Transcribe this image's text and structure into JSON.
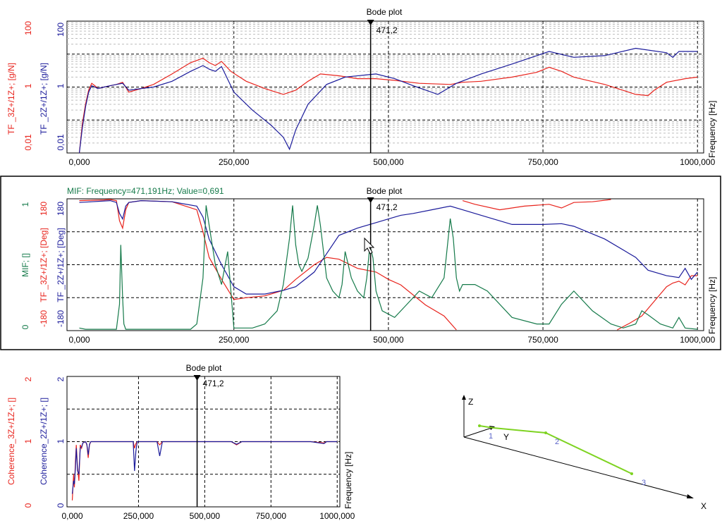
{
  "colors": {
    "red": "#e8231c",
    "blue": "#1a1a9a",
    "green": "#157a4a",
    "black": "#000000",
    "grid": "#bdbdbd",
    "mode": "#7ed321"
  },
  "cursor_value": "471,2",
  "chart_data": [
    {
      "id": "top",
      "type": "line",
      "title": "Bode plot",
      "x_unit_label": "Frequency [Hz]",
      "xlim": [
        -20,
        1010
      ],
      "xticks": [
        "0,000",
        "250,000",
        "500,000",
        "750,000",
        "1000,000"
      ],
      "xtick_values": [
        0,
        250,
        500,
        750,
        1000
      ],
      "yscale": "log",
      "ylim": [
        0.01,
        100
      ],
      "ylabel_red": "TF _3Z+/1Z+; [g/N]",
      "ylabel_blue": "TF _2Z+/1Z+; [g/N]",
      "yticks_red": [
        "100",
        "1",
        "0,01"
      ],
      "yticks_blue": [
        "100",
        "1",
        "0,01"
      ],
      "cursor_x": 471.2,
      "series": [
        {
          "name": "TF _3Z+/1Z+",
          "color": "red",
          "x": [
            0,
            5,
            10,
            15,
            20,
            25,
            30,
            40,
            50,
            60,
            70,
            80,
            100,
            120,
            150,
            180,
            200,
            210,
            220,
            230,
            245,
            270,
            300,
            330,
            350,
            370,
            390,
            420,
            450,
            480,
            510,
            550,
            600,
            620,
            650,
            700,
            740,
            760,
            780,
            800,
            850,
            900,
            920,
            930,
            950,
            980,
            1000
          ],
          "y": [
            0.01,
            0.08,
            0.3,
            0.8,
            1.3,
            1.1,
            0.9,
            1.0,
            1.1,
            1.2,
            1.4,
            0.7,
            0.9,
            1.2,
            2.5,
            5.5,
            7.5,
            5.5,
            4.5,
            6.0,
            3.0,
            1.5,
            0.9,
            0.6,
            0.8,
            1.5,
            2.5,
            2.2,
            1.8,
            1.8,
            1.6,
            1.3,
            1.2,
            1.4,
            1.5,
            2.0,
            2.8,
            4.0,
            3.0,
            2.0,
            1.2,
            0.6,
            0.55,
            0.8,
            1.4,
            1.8,
            2.0
          ]
        },
        {
          "name": "TF _2Z+/1Z+",
          "color": "blue",
          "x": [
            0,
            5,
            10,
            15,
            20,
            25,
            30,
            40,
            50,
            60,
            70,
            80,
            100,
            120,
            150,
            180,
            200,
            210,
            220,
            230,
            250,
            280,
            310,
            330,
            340,
            350,
            370,
            400,
            430,
            460,
            480,
            510,
            540,
            580,
            610,
            650,
            700,
            760,
            800,
            850,
            900,
            950,
            960,
            970,
            1000
          ],
          "y": [
            0.01,
            0.06,
            0.25,
            0.7,
            1.1,
            1.0,
            0.9,
            1.0,
            1.1,
            1.2,
            1.3,
            0.8,
            0.9,
            1.0,
            1.5,
            3.0,
            4.5,
            3.5,
            3.0,
            4.2,
            0.7,
            0.2,
            0.07,
            0.03,
            0.013,
            0.05,
            0.3,
            1.2,
            2.0,
            2.3,
            2.5,
            1.8,
            1.1,
            0.6,
            1.3,
            2.5,
            5.0,
            12.0,
            8.0,
            9.0,
            15.0,
            11.0,
            8.0,
            12.0,
            12.0
          ]
        }
      ]
    },
    {
      "id": "middle",
      "type": "line",
      "title": "Bode plot",
      "info_text": "MIF: Frequency=471,191Hz; Value=0,691",
      "x_unit_label": "Frequency [Hz]",
      "xlim": [
        -20,
        1010
      ],
      "xticks": [
        "0,000",
        "250,000",
        "500,000",
        "750,000",
        "1000,000"
      ],
      "xtick_values": [
        0,
        250,
        500,
        750,
        1000
      ],
      "ylabel_green": "MIF; []",
      "ylabel_red": "TF _3Z+/1Z+; [Deg]",
      "ylabel_blue": "TF _2Z+/1Z+; [Deg]",
      "yticks_green": [
        "1",
        "0"
      ],
      "yticks_red": [
        "180",
        "-180"
      ],
      "yticks_blue": [
        "180",
        "-180"
      ],
      "ylim_phase": [
        -180,
        180
      ],
      "ylim_mif": [
        0,
        1
      ],
      "cursor_x": 471.2,
      "series": [
        {
          "name": "TF _3Z+/1Z+ phase",
          "color": "red",
          "axis": "phase",
          "segments": [
            {
              "x": [
                0,
                20,
                40,
                50,
                60,
                65,
                70,
                75,
                80,
                100,
                150,
                190,
                200,
                210,
                230,
                250,
                270,
                300,
                330,
                350,
                380,
                400,
                420,
                450,
                480,
                500,
                520,
                560,
                590,
                610
              ],
              "y": [
                175,
                176,
                177,
                178,
                175,
                120,
                100,
                150,
                170,
                175,
                172,
                150,
                90,
                20,
                -40,
                -95,
                -90,
                -85,
                -70,
                -40,
                0,
                20,
                15,
                -10,
                -20,
                -40,
                -55,
                -110,
                -140,
                -178
              ]
            },
            {
              "x": [
                620,
                640,
                680,
                720,
                760,
                780,
                800,
                830,
                860
              ],
              "y": [
                175,
                165,
                150,
                160,
                165,
                155,
                170,
                172,
                178
              ]
            },
            {
              "x": [
                870,
                890,
                910,
                930,
                950,
                960,
                970,
                980,
                990,
                1000
              ],
              "y": [
                -178,
                -160,
                -140,
                -100,
                -60,
                -50,
                -45,
                -55,
                -30,
                -30
              ]
            }
          ]
        },
        {
          "name": "TF _2Z+/1Z+ phase",
          "color": "blue",
          "axis": "phase",
          "segments": [
            {
              "x": [
                0,
                20,
                40,
                50,
                60,
                65,
                70,
                75,
                80,
                100,
                150,
                190,
                200,
                210,
                230,
                250,
                270,
                300,
                330,
                350,
                380,
                400,
                420,
                450,
                480,
                500,
                520,
                540,
                570,
                600,
                620,
                650,
                700,
                750,
                780,
                800,
                850,
                900,
                920,
                950,
                970,
                980,
                990,
                1000
              ],
              "y": [
                170,
                172,
                174,
                175,
                170,
                140,
                125,
                160,
                170,
                175,
                172,
                160,
                130,
                70,
                0,
                -60,
                -80,
                -80,
                -70,
                -60,
                -20,
                30,
                80,
                100,
                115,
                125,
                135,
                140,
                150,
                160,
                150,
                135,
                110,
                110,
                112,
                105,
                70,
                20,
                -15,
                -30,
                -35,
                -10,
                -40,
                -20
              ]
            }
          ]
        },
        {
          "name": "MIF",
          "color": "green",
          "axis": "mif",
          "segments": [
            {
              "x": [
                0,
                10,
                20,
                40,
                60,
                65,
                67,
                70,
                72,
                75,
                80,
                120,
                180,
                190,
                200,
                205,
                210,
                220,
                230,
                240,
                250,
                280,
                300,
                320,
                330,
                340,
                345,
                350,
                355,
                360,
                370,
                380,
                385,
                390,
                395,
                400,
                410,
                420,
                425,
                430,
                440,
                450,
                460,
                465,
                470,
                475,
                480,
                490,
                510,
                530,
                550,
                570,
                590,
                600,
                605,
                610,
                615,
                620,
                640,
                660,
                700,
                740,
                760,
                780,
                800,
                830,
                860,
                880,
                900,
                910,
                920,
                940,
                960,
                970,
                980,
                1000
              ],
              "y": [
                0.02,
                0.01,
                0.01,
                0.01,
                0.01,
                0.2,
                0.65,
                0.25,
                0.05,
                0.01,
                0.01,
                0.01,
                0.01,
                0.05,
                0.4,
                0.95,
                0.8,
                0.5,
                0.35,
                0.6,
                0.02,
                0.02,
                0.05,
                0.15,
                0.35,
                0.7,
                0.95,
                0.65,
                0.5,
                0.45,
                0.55,
                0.8,
                0.95,
                0.8,
                0.6,
                0.4,
                0.3,
                0.25,
                0.35,
                0.6,
                0.4,
                0.3,
                0.25,
                0.4,
                0.65,
                0.55,
                0.3,
                0.15,
                0.1,
                0.2,
                0.3,
                0.25,
                0.4,
                0.85,
                0.7,
                0.4,
                0.3,
                0.35,
                0.35,
                0.3,
                0.1,
                0.05,
                0.05,
                0.2,
                0.3,
                0.15,
                0.05,
                0.02,
                0.05,
                0.15,
                0.12,
                0.05,
                0.02,
                0.1,
                0.02,
                0.01
              ]
            }
          ]
        }
      ]
    },
    {
      "id": "bottom",
      "type": "line",
      "title": "Bode plot",
      "x_unit_label": "Frequency [Hz]",
      "xlim": [
        -20,
        1010
      ],
      "xticks": [
        "0,000",
        "250,000",
        "500,000",
        "750,000",
        "1000,000"
      ],
      "xtick_values": [
        0,
        250,
        500,
        750,
        1000
      ],
      "ylabel_red": "Coherence_3Z+/1Z+; []",
      "ylabel_blue": "Coherence_2Z+/1Z+; []",
      "yticks_red": [
        "2",
        "1",
        "0"
      ],
      "yticks_blue": [
        "2",
        "1",
        "0"
      ],
      "ylim": [
        0,
        2
      ],
      "cursor_x": 471.2,
      "series": [
        {
          "name": "Coherence_3Z+/1Z+",
          "color": "red",
          "x": [
            0,
            5,
            8,
            12,
            15,
            20,
            25,
            30,
            35,
            40,
            50,
            55,
            60,
            65,
            70,
            80,
            100,
            200,
            230,
            235,
            240,
            245,
            250,
            300,
            320,
            330,
            340,
            400,
            480,
            500,
            550,
            600,
            620,
            640,
            700,
            800,
            900,
            950,
            960,
            970,
            1000
          ],
          "y": [
            0.1,
            0.5,
            0.3,
            0.7,
            0.95,
            0.6,
            0.4,
            0.95,
            0.9,
            0.98,
            1.0,
            0.95,
            0.75,
            0.95,
            1.0,
            1.0,
            1.0,
            1.0,
            1.0,
            0.9,
            0.97,
            1.0,
            1.0,
            1.0,
            1.0,
            0.95,
            1.0,
            1.0,
            1.0,
            1.0,
            1.0,
            1.0,
            0.95,
            1.0,
            1.0,
            1.0,
            1.0,
            0.98,
            1.0,
            1.0,
            1.0
          ]
        },
        {
          "name": "Coherence_2Z+/1Z+",
          "color": "blue",
          "x": [
            0,
            5,
            8,
            12,
            15,
            20,
            25,
            30,
            35,
            40,
            50,
            55,
            60,
            65,
            70,
            80,
            100,
            200,
            230,
            235,
            240,
            245,
            250,
            300,
            320,
            330,
            340,
            400,
            480,
            500,
            550,
            600,
            620,
            640,
            700,
            800,
            900,
            950,
            960,
            970,
            1000
          ],
          "y": [
            0.2,
            0.4,
            0.35,
            0.6,
            0.9,
            0.55,
            0.5,
            0.9,
            0.92,
            0.98,
            1.0,
            0.96,
            0.8,
            0.96,
            1.0,
            1.0,
            1.0,
            1.0,
            1.0,
            0.55,
            0.85,
            1.0,
            1.0,
            1.0,
            1.0,
            0.78,
            1.0,
            1.0,
            1.0,
            1.0,
            1.0,
            1.0,
            0.96,
            1.0,
            1.0,
            1.0,
            1.0,
            0.97,
            1.0,
            1.0,
            1.0
          ]
        }
      ]
    }
  ],
  "geometry_view": {
    "axis_labels": {
      "z": "Z",
      "y": "Y",
      "x": "X"
    },
    "point_labels": [
      "1",
      "2",
      "3"
    ]
  }
}
